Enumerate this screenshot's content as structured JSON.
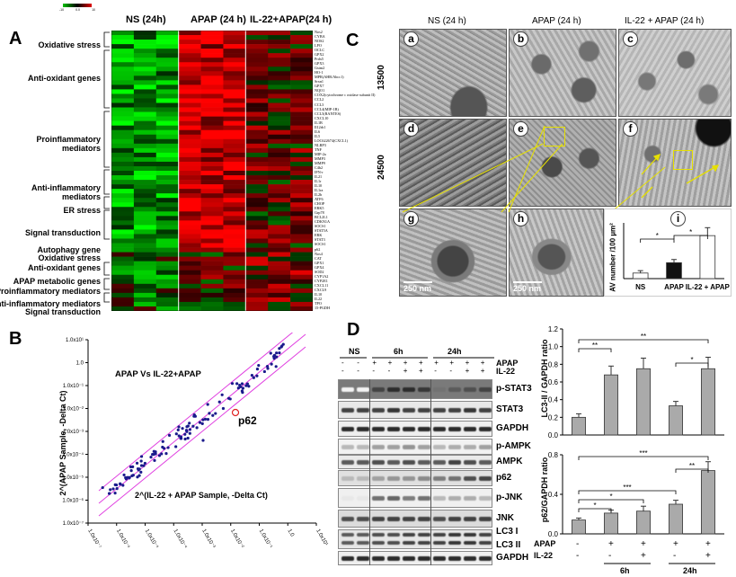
{
  "legend": {
    "low": "-10",
    "mid": "0.0",
    "high": "10"
  },
  "panel_a": {
    "letter": "A",
    "groups": [
      "NS (24h)",
      "APAP (24 h)",
      "IL-22+APAP(24 h)"
    ],
    "categories": [
      {
        "label": "Oxidative stress",
        "top": 45
      },
      {
        "label": "Anti-oxidant genes",
        "top": 82
      },
      {
        "label": "Proinflammatory\nmediators",
        "top": 150
      },
      {
        "label": "Anti-inflammatory\nmediators",
        "top": 204
      },
      {
        "label": "ER stress",
        "top": 229
      },
      {
        "label": "Signal transduction",
        "top": 254
      },
      {
        "label": "Autophagy gene",
        "top": 273
      },
      {
        "label": "Oxidative stress",
        "top": 282
      },
      {
        "label": "Anti-oxidant genes",
        "top": 293
      },
      {
        "label": "APAP metabolic genes",
        "top": 308
      },
      {
        "label": "Proinflammatory mediators",
        "top": 319
      },
      {
        "label": "Anti-inflammatory mediators",
        "top": 333
      },
      {
        "label": "Signal transduction",
        "top": 342
      }
    ],
    "genes": [
      "Nos2",
      "CYBA",
      "NOS2",
      "LPO",
      "OCLC",
      "GPX2",
      "Prdx5",
      "GPX3",
      "Gstm2",
      "HO-1",
      "MPR(AHR/Abcc1)",
      "Srxn1",
      "GPX7",
      "NQO1",
      "COX2(cytochrome c oxidase subunit II)",
      "CCL2",
      "CCL3",
      "CCL4(MIP-1B)",
      "CCL5(RANTES)",
      "CXCL10",
      "IL1B",
      "Il12rb1",
      "IL6",
      "IL5",
      "LOC622674(CXCL1)",
      "NLRP3",
      "TNF",
      "MIP-2a",
      "MMP3",
      "MMP9",
      "C4b2",
      "IFN-r",
      "IL21",
      "IL1r",
      "IL10",
      "IL1ra",
      "IL2b",
      "ATF6",
      "CHOP",
      "ERK5",
      "Grp78",
      "BCL2L1",
      "CDKN1A",
      "SOCS1",
      "STAT5A",
      "ERK",
      "STAT3",
      "SOCS1",
      "p62",
      "Nos4",
      "CAT",
      "GPX1",
      "GPX4",
      "SOD2",
      "CYP1A2",
      "CYP2E1",
      "CXCL11",
      "CXCL9",
      "IL10",
      "IL22",
      "TPO",
      "15-PGDH"
    ]
  },
  "panel_b": {
    "letter": "B",
    "title": "APAP Vs IL-22+APAP",
    "ylabel": "2^(APAP Sample, -Delta Ct)",
    "xlabel": "2^(IL-22 + APAP Sample, -Delta Ct)",
    "highlight": "p62",
    "yticks": [
      "1.0x10¹",
      "1.0",
      "1.0x10⁻¹",
      "1.0x10⁻²",
      "1.0x10⁻³",
      "1.0x10⁻⁴",
      "1.0x10⁻⁵",
      "1.0x10⁻⁶",
      "1.0x10⁻⁷"
    ],
    "xticks": [
      "1.0x10⁻⁷",
      "1.0x10⁻⁶",
      "1.0x10⁻⁵",
      "1.0x10⁻⁴",
      "1.0x10⁻³",
      "1.0x10⁻²",
      "1.0x10⁻¹",
      "1.0",
      "1.0x10¹"
    ]
  },
  "panel_c": {
    "letter": "C",
    "columns": [
      "NS (24 h)",
      "APAP (24 h)",
      "IL-22 + APAP (24 h)"
    ],
    "rows": [
      "13500",
      "24500"
    ],
    "tiles": [
      "a",
      "b",
      "c",
      "d",
      "e",
      "f",
      "g",
      "h",
      "i"
    ],
    "scalebar": "250 nm",
    "chart_data": {
      "type": "bar",
      "categories": [
        "NS",
        "APAP",
        "IL-22 + APAP"
      ],
      "values": [
        0.35,
        1.0,
        2.7
      ],
      "errors": [
        0.15,
        0.2,
        0.5
      ],
      "ylabel": "AV number /100 µm²",
      "ylim": [
        0,
        3.5
      ],
      "significance": [
        "*",
        "*"
      ]
    }
  },
  "panel_d": {
    "letter": "D",
    "lanes": {
      "ns": "NS",
      "t6": "6h",
      "t24": "24h"
    },
    "treat_labels": [
      "APAP",
      "IL-22"
    ],
    "apap_row": [
      "-",
      "-",
      "+",
      "+",
      "+",
      "+",
      "+",
      "+",
      "+",
      "+"
    ],
    "il22_row": [
      "-",
      "-",
      "-",
      "-",
      "+",
      "+",
      "-",
      "-",
      "+",
      "+"
    ],
    "blots": [
      "p-STAT3",
      "STAT3",
      "GAPDH",
      "p-AMPK",
      "AMPK",
      "p62",
      "p-JNK",
      "JNK",
      "LC3 I",
      "LC3 II",
      "GAPDH"
    ],
    "charts": [
      {
        "type": "bar",
        "categories": [
          "- / -",
          "+ / - (6h)",
          "+ / + (6h)",
          "+ / - (24h)",
          "+ / + (24h)"
        ],
        "values": [
          0.2,
          0.68,
          0.75,
          0.33,
          0.75
        ],
        "errors": [
          0.04,
          0.1,
          0.12,
          0.05,
          0.13
        ],
        "ylabel": "LC3-II / GAPDH ratio",
        "ylim": [
          0,
          1.2
        ],
        "yticks": [
          "0.0",
          "0.2",
          "0.4",
          "0.6",
          "0.8",
          "1.0",
          "1.2"
        ],
        "significance": [
          "**",
          "**",
          "*"
        ]
      },
      {
        "type": "bar",
        "categories": [
          "- / -",
          "+ / - (6h)",
          "+ / + (6h)",
          "+ / - (24h)",
          "+ / + (24h)"
        ],
        "values": [
          0.14,
          0.21,
          0.23,
          0.3,
          0.64
        ],
        "errors": [
          0.02,
          0.03,
          0.05,
          0.04,
          0.09
        ],
        "ylabel": "p62/GAPDH ratio",
        "ylim": [
          0,
          0.8
        ],
        "yticks": [
          "0.0",
          "0.4",
          "0.8"
        ],
        "significance": [
          "***",
          "**",
          "***",
          "*",
          "*"
        ]
      }
    ],
    "xaxis": {
      "apap": [
        "-",
        "+",
        "+",
        "+",
        "+"
      ],
      "il22": [
        "-",
        "-",
        "+",
        "-",
        "+"
      ],
      "apap_label": "APAP",
      "il22_label": "IL-22",
      "t6": "6h",
      "t24": "24h"
    }
  }
}
